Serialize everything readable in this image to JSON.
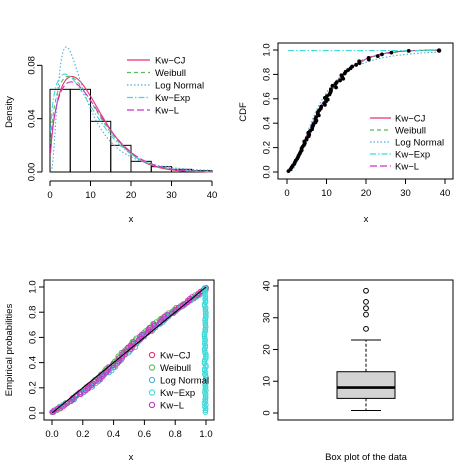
{
  "panels": {
    "density": {
      "type": "histogram+density",
      "xlabel": "x",
      "ylabel": "Density",
      "xlim": [
        0,
        40
      ],
      "ylim": [
        0,
        0.09
      ],
      "xticks": [
        0,
        10,
        20,
        30,
        40
      ],
      "yticks": [
        0.0,
        0.04,
        0.08
      ],
      "ytick_labels": [
        "0.00",
        "0.04",
        "0.08"
      ],
      "bins": [
        0,
        5,
        10,
        15,
        20,
        25,
        30,
        35,
        40
      ],
      "bin_heights": [
        0.062,
        0.062,
        0.038,
        0.02,
        0.008,
        0.004,
        0.002,
        0.001
      ],
      "legend": [
        "Kw−CJ",
        "Weibull",
        "Log Normal",
        "Kw−Exp",
        "Kw−L"
      ],
      "legend_position": "top-right"
    },
    "cdf": {
      "type": "empirical-cdf+fitted",
      "xlabel": "x",
      "ylabel": "CDF",
      "xlim": [
        0,
        40
      ],
      "ylim": [
        0,
        1
      ],
      "xticks": [
        0,
        10,
        20,
        30,
        40
      ],
      "yticks": [
        0.0,
        0.2,
        0.4,
        0.6,
        0.8,
        1.0
      ],
      "ytick_labels": [
        "0.0",
        "0.2",
        "0.4",
        "0.6",
        "0.8",
        "1.0"
      ],
      "legend": [
        "Kw−CJ",
        "Weibull",
        "Log Normal",
        "Kw−Exp",
        "Kw−L"
      ],
      "legend_position": "bottom-right"
    },
    "pp": {
      "type": "pp-plot",
      "xlabel": "x",
      "ylabel": "Empirical probabilities",
      "xlim": [
        0,
        1
      ],
      "ylim": [
        0,
        1
      ],
      "xticks": [
        0.0,
        0.2,
        0.4,
        0.6,
        0.8,
        1.0
      ],
      "yticks": [
        0.0,
        0.2,
        0.4,
        0.6,
        0.8,
        1.0
      ],
      "tick_labels": [
        "0.0",
        "0.2",
        "0.4",
        "0.6",
        "0.8",
        "1.0"
      ],
      "legend": [
        "Kw−CJ",
        "Weibull",
        "Log Normal",
        "Kw−Exp",
        "Kw−L"
      ],
      "legend_position": "bottom-right"
    },
    "box": {
      "type": "boxplot",
      "xlabel": "Box plot of the data",
      "ylim": [
        0,
        40
      ],
      "yticks": [
        0,
        10,
        20,
        30,
        40
      ],
      "min": 0.8,
      "q1": 4.6,
      "median": 8.0,
      "q3": 13.0,
      "max": 23.0,
      "outliers": [
        26.5,
        31.0,
        33.0,
        35.0,
        38.5
      ]
    }
  },
  "colors": {
    "kwcj": "#e8336e",
    "weibull": "#5cb85c",
    "lognormal": "#4faed6",
    "kwexp": "#3fd9d9",
    "kwl": "#cc33cc",
    "box_fill": "#d3d3d3"
  }
}
